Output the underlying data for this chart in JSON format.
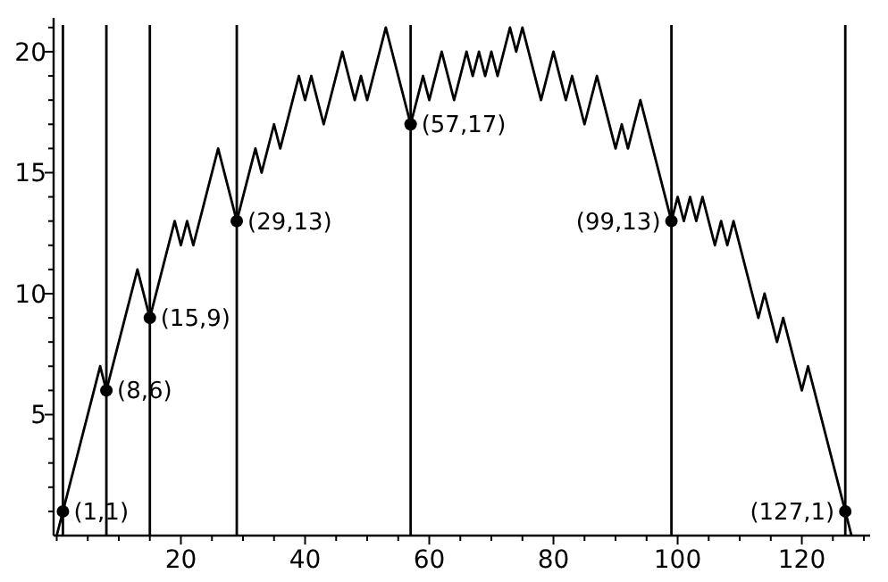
{
  "chart_data": {
    "type": "line",
    "xlim": [
      -0.5,
      131
    ],
    "ylim": [
      0,
      21.4
    ],
    "xticks": [
      {
        "value": 0,
        "label": null
      },
      {
        "value": 5,
        "label": null
      },
      {
        "value": 10,
        "label": null
      },
      {
        "value": 15,
        "label": null
      },
      20,
      {
        "value": 25,
        "label": null
      },
      {
        "value": 30,
        "label": null
      },
      {
        "value": 35,
        "label": null
      },
      40,
      {
        "value": 45,
        "label": null
      },
      {
        "value": 50,
        "label": null
      },
      {
        "value": 55,
        "label": null
      },
      60,
      {
        "value": 65,
        "label": null
      },
      {
        "value": 70,
        "label": null
      },
      {
        "value": 75,
        "label": null
      },
      80,
      {
        "value": 85,
        "label": null
      },
      {
        "value": 90,
        "label": null
      },
      {
        "value": 95,
        "label": null
      },
      100,
      {
        "value": 105,
        "label": null
      },
      {
        "value": 110,
        "label": null
      },
      {
        "value": 115,
        "label": null
      },
      120,
      {
        "value": 125,
        "label": null
      },
      {
        "value": 130,
        "label": null
      }
    ],
    "yticks": [
      {
        "value": 1,
        "label": null
      },
      {
        "value": 2,
        "label": null
      },
      {
        "value": 3,
        "label": null
      },
      {
        "value": 4,
        "label": null
      },
      5,
      {
        "value": 6,
        "label": null
      },
      {
        "value": 7,
        "label": null
      },
      {
        "value": 8,
        "label": null
      },
      {
        "value": 9,
        "label": null
      },
      10,
      {
        "value": 11,
        "label": null
      },
      {
        "value": 12,
        "label": null
      },
      {
        "value": 13,
        "label": null
      },
      {
        "value": 14,
        "label": null
      },
      15,
      {
        "value": 16,
        "label": null
      },
      {
        "value": 17,
        "label": null
      },
      {
        "value": 18,
        "label": null
      },
      {
        "value": 19,
        "label": null
      },
      20,
      {
        "value": 21,
        "label": null
      }
    ],
    "grid": false,
    "series": [
      {
        "color": "#000000",
        "marker": "none",
        "line_style": "solid",
        "x": [
          0,
          7,
          8,
          13,
          15,
          19,
          20,
          21,
          22,
          26,
          29,
          32,
          33,
          35,
          36,
          39,
          40,
          41,
          43,
          46,
          48,
          49,
          50,
          53,
          57,
          59,
          60,
          62,
          64,
          66,
          67,
          68,
          69,
          70,
          71,
          73,
          74,
          75,
          78,
          80,
          82,
          83,
          85,
          87,
          90,
          91,
          92,
          94,
          99,
          100,
          101,
          102,
          103,
          104,
          106,
          107,
          108,
          109,
          113,
          114,
          116,
          117,
          120,
          121,
          127,
          128
        ],
        "values": [
          0,
          7,
          6,
          11,
          9,
          13,
          12,
          13,
          12,
          16,
          13,
          16,
          15,
          17,
          16,
          19,
          18,
          19,
          17,
          20,
          18,
          19,
          18,
          21,
          17,
          19,
          18,
          20,
          18,
          20,
          19,
          20,
          19,
          20,
          19,
          21,
          20,
          21,
          18,
          20,
          18,
          19,
          17,
          19,
          16,
          17,
          16,
          18,
          13,
          14,
          13,
          14,
          13,
          14,
          12,
          13,
          12,
          13,
          9,
          10,
          8,
          9,
          6,
          7,
          1,
          0
        ]
      },
      {
        "type": "scatter",
        "color": "#000000",
        "marker": "circle",
        "x": [
          1,
          8,
          15,
          29,
          57,
          99,
          127
        ],
        "values": [
          1,
          6,
          9,
          13,
          17,
          13,
          1
        ]
      }
    ],
    "ref_lines": [
      {
        "axis": "x",
        "value": 1,
        "color": "#000000"
      },
      {
        "axis": "x",
        "value": 8,
        "color": "#000000"
      },
      {
        "axis": "x",
        "value": 15,
        "color": "#000000"
      },
      {
        "axis": "x",
        "value": 29,
        "color": "#000000"
      },
      {
        "axis": "x",
        "value": 57,
        "color": "#000000"
      },
      {
        "axis": "x",
        "value": 99,
        "color": "#000000"
      },
      {
        "axis": "x",
        "value": 127,
        "color": "#000000"
      }
    ],
    "annotations": [
      {
        "text": "(1,1)",
        "x": 1,
        "y": 1
      },
      {
        "text": "(8,6)",
        "x": 8,
        "y": 6
      },
      {
        "text": "(15,9)",
        "x": 15,
        "y": 9
      },
      {
        "text": "(29,13)",
        "x": 29,
        "y": 13
      },
      {
        "text": "(57,17)",
        "x": 57,
        "y": 17
      },
      {
        "text": "(99,13)",
        "x": 99,
        "y": 13
      },
      {
        "text": "(127,1)",
        "x": 127,
        "y": 1
      }
    ]
  }
}
